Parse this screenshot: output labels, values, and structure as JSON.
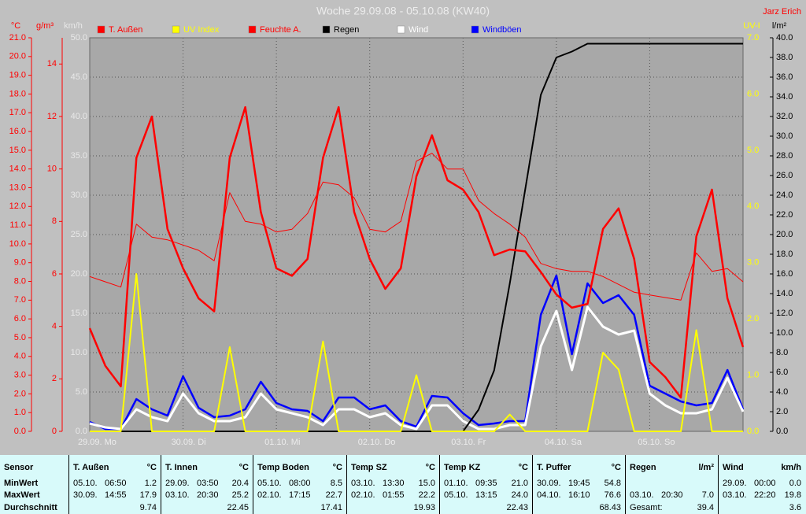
{
  "chart_data": {
    "type": "line",
    "title": "Woche 29.09.08 - 05.10.08 (KW40)",
    "author": "Jarz Erich",
    "grid": true,
    "x": [
      0,
      4,
      8,
      12,
      16,
      20,
      24,
      28,
      32,
      36,
      40,
      44,
      48,
      52,
      56,
      60,
      64,
      68,
      72,
      76,
      80,
      84,
      88,
      92,
      96,
      100,
      104,
      108,
      112,
      116,
      120,
      124,
      128,
      132,
      136,
      140,
      144,
      148,
      152,
      156,
      160,
      164,
      168
    ],
    "xlim": [
      0,
      168
    ],
    "xticks": [
      {
        "value": 0,
        "label": "29.09. Mo"
      },
      {
        "value": 24,
        "label": "30.09. Di"
      },
      {
        "value": 48,
        "label": "01.10. Mi"
      },
      {
        "value": 72,
        "label": "02.10. Do"
      },
      {
        "value": 96,
        "label": "03.10. Fr"
      },
      {
        "value": 120,
        "label": "04.10. Sa"
      },
      {
        "value": 144,
        "label": "05.10. So"
      }
    ],
    "axes": [
      {
        "unit": "°C",
        "color": "#ff0000",
        "lim": [
          0,
          21
        ],
        "ticks": [
          {
            "value": 0,
            "label": "0.0"
          },
          {
            "value": 1,
            "label": "1.0"
          },
          {
            "value": 2,
            "label": "2.0"
          },
          {
            "value": 3,
            "label": "3.0"
          },
          {
            "value": 4,
            "label": "4.0"
          },
          {
            "value": 5,
            "label": "5.0"
          },
          {
            "value": 6,
            "label": "6.0"
          },
          {
            "value": 7,
            "label": "7.0"
          },
          {
            "value": 8,
            "label": "8.0"
          },
          {
            "value": 9,
            "label": "9.0"
          },
          {
            "value": 10,
            "label": "10.0"
          },
          {
            "value": 11,
            "label": "11.0"
          },
          {
            "value": 12,
            "label": "12.0"
          },
          {
            "value": 13,
            "label": "13.0"
          },
          {
            "value": 14,
            "label": "14.0"
          },
          {
            "value": 15,
            "label": "15.0"
          },
          {
            "value": 16,
            "label": "16.0"
          },
          {
            "value": 17,
            "label": "17.0"
          },
          {
            "value": 18,
            "label": "18.0"
          },
          {
            "value": 19,
            "label": "19.0"
          },
          {
            "value": 20,
            "label": "20.0"
          },
          {
            "value": 21,
            "label": "21.0"
          }
        ]
      },
      {
        "unit": "g/m³",
        "color": "#ff0000",
        "lim": [
          0,
          15
        ],
        "ticks": [
          0,
          2,
          4,
          6,
          8,
          10,
          12,
          14
        ]
      },
      {
        "unit": "km/h",
        "color": "#e8e8e8",
        "lim": [
          0,
          50
        ],
        "ticks": [
          {
            "value": 0,
            "label": "0.0"
          },
          {
            "value": 5,
            "label": "5.0"
          },
          {
            "value": 10,
            "label": "10.0"
          },
          {
            "value": 15,
            "label": "15.0"
          },
          {
            "value": 20,
            "label": "20.0"
          },
          {
            "value": 25,
            "label": "25.0"
          },
          {
            "value": 30,
            "label": "30.0"
          },
          {
            "value": 35,
            "label": "35.0"
          },
          {
            "value": 40,
            "label": "40.0"
          },
          {
            "value": 45,
            "label": "45.0"
          },
          {
            "value": 50,
            "label": "50.0"
          }
        ]
      },
      {
        "unit": "UV-I",
        "color": "#ffff00",
        "lim": [
          0,
          7
        ],
        "ticks": [
          {
            "value": 0,
            "label": "0.0"
          },
          {
            "value": 1,
            "label": "1.0"
          },
          {
            "value": 2,
            "label": "2.0"
          },
          {
            "value": 3,
            "label": "3.0"
          },
          {
            "value": 4,
            "label": "4.0"
          },
          {
            "value": 5,
            "label": "5.0"
          },
          {
            "value": 6,
            "label": "6.0"
          },
          {
            "value": 7,
            "label": "7.0"
          }
        ]
      },
      {
        "unit": "l/m²",
        "color": "#000000",
        "lim": [
          0,
          40
        ],
        "ticks": [
          {
            "value": 0,
            "label": "0.0"
          },
          {
            "value": 2,
            "label": "2.0"
          },
          {
            "value": 4,
            "label": "4.0"
          },
          {
            "value": 6,
            "label": "6.0"
          },
          {
            "value": 8,
            "label": "8.0"
          },
          {
            "value": 10,
            "label": "10.0"
          },
          {
            "value": 12,
            "label": "12.0"
          },
          {
            "value": 14,
            "label": "14.0"
          },
          {
            "value": 16,
            "label": "16.0"
          },
          {
            "value": 18,
            "label": "18.0"
          },
          {
            "value": 20,
            "label": "20.0"
          },
          {
            "value": 22,
            "label": "22.0"
          },
          {
            "value": 24,
            "label": "24.0"
          },
          {
            "value": 26,
            "label": "26.0"
          },
          {
            "value": 28,
            "label": "28.0"
          },
          {
            "value": 30,
            "label": "30.0"
          },
          {
            "value": 32,
            "label": "32.0"
          },
          {
            "value": 34,
            "label": "34.0"
          },
          {
            "value": 36,
            "label": "36.0"
          },
          {
            "value": 38,
            "label": "38.0"
          },
          {
            "value": 40,
            "label": "40.0"
          }
        ]
      }
    ],
    "series": [
      {
        "name": "T. Außen",
        "color": "#ff0000",
        "axis": 0,
        "values": [
          5.5,
          3.5,
          2.4,
          14.6,
          16.8,
          10.8,
          8.7,
          7.1,
          6.4,
          14.6,
          17.3,
          11.7,
          8.7,
          8.3,
          9.2,
          14.6,
          17.3,
          11.7,
          9.2,
          7.6,
          8.7,
          13.6,
          15.8,
          13.4,
          12.9,
          11.7,
          9.4,
          9.7,
          9.6,
          8.5,
          7.3,
          6.6,
          6.8,
          10.8,
          11.9,
          9.2,
          3.7,
          2.9,
          1.8,
          10.4,
          12.9,
          7.1,
          4.5
        ]
      },
      {
        "name": "UV Index",
        "color": "#ffff00",
        "axis": 3,
        "values": [
          0,
          0,
          0,
          2.8,
          0,
          0,
          0,
          0,
          0,
          1.5,
          0,
          0,
          0,
          0,
          0,
          1.6,
          0,
          0,
          0,
          0,
          0,
          1.0,
          0,
          0,
          0,
          0,
          0,
          0.3,
          0,
          0,
          0,
          0,
          0,
          1.4,
          1.1,
          0,
          0,
          0,
          0,
          1.8,
          0,
          0,
          0
        ]
      },
      {
        "name": "Feuchte A.",
        "color": "#ff0000",
        "axis": 1,
        "values": [
          5.9,
          5.7,
          5.5,
          7.9,
          7.4,
          7.3,
          7.1,
          6.9,
          6.5,
          9.1,
          8.0,
          7.9,
          7.6,
          7.7,
          8.3,
          9.5,
          9.4,
          8.9,
          7.7,
          7.6,
          8.0,
          10.3,
          10.6,
          10.0,
          10.0,
          8.8,
          8.3,
          7.9,
          7.4,
          6.4,
          6.2,
          6.1,
          6.1,
          5.9,
          5.6,
          5.3,
          5.2,
          5.1,
          5.0,
          6.8,
          6.1,
          6.2,
          5.7
        ]
      },
      {
        "name": "Regen",
        "color": "#000000",
        "axis": 4,
        "values": [
          0,
          0,
          0,
          0,
          0,
          0,
          0,
          0,
          0,
          0,
          0,
          0,
          0,
          0,
          0,
          0,
          0,
          0,
          0,
          0,
          0,
          0,
          0,
          0,
          0,
          2.2,
          6.2,
          15.0,
          24.6,
          34.2,
          38.0,
          38.6,
          39.4,
          39.4,
          39.4,
          39.4,
          39.4,
          39.4,
          39.4,
          39.4,
          39.4,
          39.4,
          39.4
        ]
      },
      {
        "name": "Wind",
        "color": "#ffffff",
        "axis": 2,
        "values": [
          1.0,
          0.5,
          0.3,
          2.8,
          1.8,
          1.3,
          4.8,
          2.3,
          1.3,
          1.3,
          1.8,
          4.8,
          2.8,
          2.3,
          1.8,
          0.8,
          2.8,
          2.8,
          1.8,
          2.3,
          0.8,
          0.3,
          3.3,
          3.3,
          1.3,
          0.3,
          0.3,
          0.8,
          0.8,
          10.8,
          15.3,
          7.8,
          15.8,
          13.3,
          12.3,
          12.8,
          4.8,
          3.3,
          2.3,
          2.3,
          2.8,
          6.8,
          2.5
        ]
      },
      {
        "name": "Windböen",
        "color": "#0000ff",
        "axis": 2,
        "values": [
          1.2,
          0.3,
          0.3,
          4.1,
          2.8,
          2.0,
          7.0,
          3.0,
          1.8,
          2.0,
          2.8,
          6.3,
          3.6,
          2.8,
          2.6,
          1.3,
          4.3,
          4.3,
          2.8,
          3.3,
          1.3,
          0.6,
          4.5,
          4.3,
          2.3,
          0.8,
          1.0,
          1.3,
          1.3,
          14.8,
          19.8,
          9.8,
          18.8,
          16.3,
          17.3,
          14.8,
          5.8,
          4.8,
          3.8,
          3.3,
          3.6,
          7.8,
          2.8
        ]
      }
    ]
  },
  "table": {
    "header": "Sensor",
    "row_labels": [
      "MinWert",
      "MaxWert",
      "Durchschnitt"
    ],
    "sensors": [
      {
        "name": "T. Außen",
        "unit": "°C",
        "min": [
          "05.10.",
          "06:50",
          "1.2"
        ],
        "max": [
          "30.09.",
          "14:55",
          "17.9"
        ],
        "avg": [
          "9.74"
        ]
      },
      {
        "name": "T. Innen",
        "unit": "°C",
        "min": [
          "29.09.",
          "03:50",
          "20.4"
        ],
        "max": [
          "03.10.",
          "20:30",
          "25.2"
        ],
        "avg": [
          "22.45"
        ]
      },
      {
        "name": "Temp Boden",
        "unit": "°C",
        "min": [
          "05.10.",
          "08:00",
          "8.5"
        ],
        "max": [
          "02.10.",
          "17:15",
          "22.7"
        ],
        "avg": [
          "17.41"
        ]
      },
      {
        "name": "Temp SZ",
        "unit": "°C",
        "min": [
          "03.10.",
          "13:30",
          "15.0"
        ],
        "max": [
          "02.10.",
          "01:55",
          "22.2"
        ],
        "avg": [
          "19.93"
        ]
      },
      {
        "name": "Temp KZ",
        "unit": "°C",
        "min": [
          "01.10.",
          "09:35",
          "21.0"
        ],
        "max": [
          "05.10.",
          "13:15",
          "24.0"
        ],
        "avg": [
          "22.43"
        ]
      },
      {
        "name": "T. Puffer",
        "unit": "°C",
        "min": [
          "30.09.",
          "19:45",
          "54.8"
        ],
        "max": [
          "04.10.",
          "16:10",
          "76.6"
        ],
        "avg": [
          "68.43"
        ]
      },
      {
        "name": "Regen",
        "unit": "l/m²",
        "min": [],
        "max": [
          "03.10.",
          "20:30",
          "7.0"
        ],
        "avg": [
          "Gesamt:",
          "39.4"
        ]
      },
      {
        "name": "Wind",
        "unit": "km/h",
        "min": [
          "29.09.",
          "00:00",
          "0.0"
        ],
        "max": [
          "03.10.",
          "22:20",
          "19.8"
        ],
        "avg": [
          "3.6"
        ]
      }
    ]
  }
}
